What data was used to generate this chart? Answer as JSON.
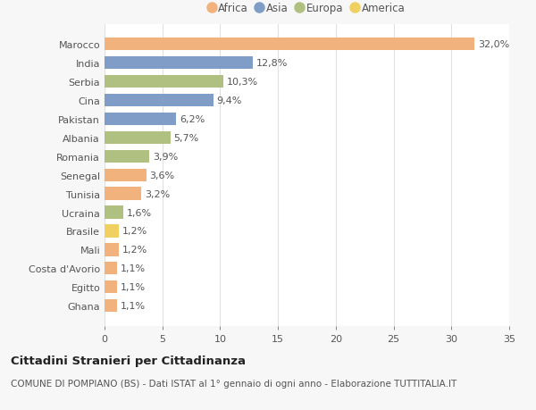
{
  "countries": [
    "Marocco",
    "India",
    "Serbia",
    "Cina",
    "Pakistan",
    "Albania",
    "Romania",
    "Senegal",
    "Tunisia",
    "Ucraina",
    "Brasile",
    "Mali",
    "Costa d'Avorio",
    "Egitto",
    "Ghana"
  ],
  "values": [
    32.0,
    12.8,
    10.3,
    9.4,
    6.2,
    5.7,
    3.9,
    3.6,
    3.2,
    1.6,
    1.2,
    1.2,
    1.1,
    1.1,
    1.1
  ],
  "labels": [
    "32,0%",
    "12,8%",
    "10,3%",
    "9,4%",
    "6,2%",
    "5,7%",
    "3,9%",
    "3,6%",
    "3,2%",
    "1,6%",
    "1,2%",
    "1,2%",
    "1,1%",
    "1,1%",
    "1,1%"
  ],
  "categories": [
    "Africa",
    "Asia",
    "Europa",
    "America"
  ],
  "continent": [
    "Africa",
    "Asia",
    "Europa",
    "Asia",
    "Asia",
    "Europa",
    "Europa",
    "Africa",
    "Africa",
    "Europa",
    "America",
    "Africa",
    "Africa",
    "Africa",
    "Africa"
  ],
  "colors": {
    "Africa": "#F2B27E",
    "Asia": "#809DC8",
    "Europa": "#B0C080",
    "America": "#F0D060"
  },
  "bg_color": "#f7f7f7",
  "bar_bg_color": "#ffffff",
  "title": "Cittadini Stranieri per Cittadinanza",
  "subtitle": "COMUNE DI POMPIANO (BS) - Dati ISTAT al 1° gennaio di ogni anno - Elaborazione TUTTITALIA.IT",
  "xlim": [
    0,
    35
  ],
  "xticks": [
    0,
    5,
    10,
    15,
    20,
    25,
    30,
    35
  ],
  "grid_color": "#e0e0e0",
  "label_fontsize": 8.0,
  "tick_fontsize": 8.0,
  "title_fontsize": 9.5,
  "subtitle_fontsize": 7.5,
  "legend_fontsize": 8.5
}
